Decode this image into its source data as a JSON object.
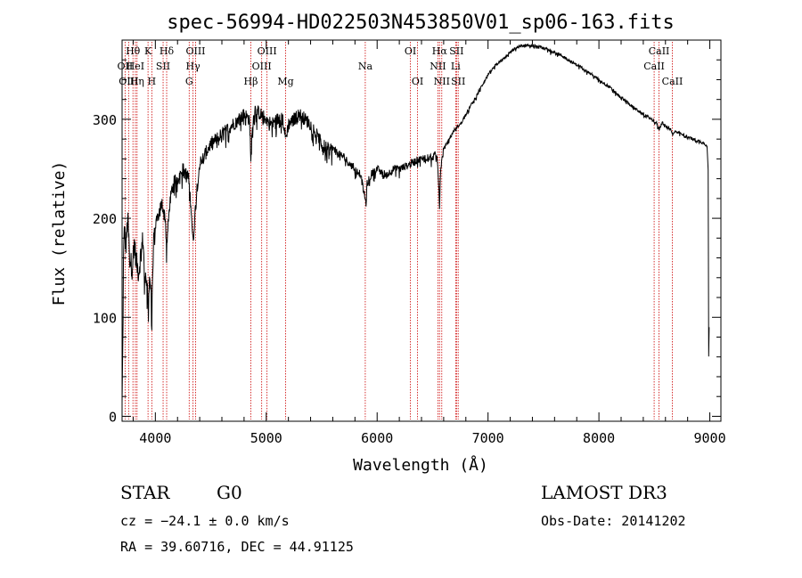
{
  "chart_data": {
    "type": "line",
    "title": "spec-56994-HD022503N453850V01_sp06-163.fits",
    "xlabel": "Wavelength (Å)",
    "ylabel": "Flux (relative)",
    "xlim": [
      3700,
      9100
    ],
    "ylim": [
      -5,
      380
    ],
    "x_ticks": [
      4000,
      5000,
      6000,
      7000,
      8000,
      9000
    ],
    "y_ticks": [
      0,
      100,
      200,
      300
    ],
    "series": [
      {
        "name": "flux",
        "anchors": [
          [
            3700,
            10
          ],
          [
            3705,
            55
          ],
          [
            3712,
            150
          ],
          [
            3720,
            190
          ],
          [
            3735,
            170
          ],
          [
            3750,
            200
          ],
          [
            3770,
            160
          ],
          [
            3790,
            150
          ],
          [
            3810,
            175
          ],
          [
            3830,
            155
          ],
          [
            3850,
            145
          ],
          [
            3870,
            165
          ],
          [
            3890,
            180
          ],
          [
            3905,
            130
          ],
          [
            3920,
            150
          ],
          [
            3935,
            115
          ],
          [
            3950,
            145
          ],
          [
            3968,
            110
          ],
          [
            3985,
            175
          ],
          [
            4000,
            190
          ],
          [
            4030,
            205
          ],
          [
            4060,
            215
          ],
          [
            4090,
            200
          ],
          [
            4101,
            170
          ],
          [
            4130,
            215
          ],
          [
            4160,
            235
          ],
          [
            4200,
            240
          ],
          [
            4250,
            250
          ],
          [
            4300,
            240
          ],
          [
            4320,
            215
          ],
          [
            4340,
            175
          ],
          [
            4370,
            225
          ],
          [
            4400,
            255
          ],
          [
            4450,
            265
          ],
          [
            4500,
            275
          ],
          [
            4550,
            280
          ],
          [
            4600,
            285
          ],
          [
            4650,
            290
          ],
          [
            4700,
            295
          ],
          [
            4750,
            300
          ],
          [
            4800,
            305
          ],
          [
            4850,
            300
          ],
          [
            4861,
            255
          ],
          [
            4875,
            295
          ],
          [
            4900,
            310
          ],
          [
            4950,
            305
          ],
          [
            5000,
            300
          ],
          [
            5050,
            295
          ],
          [
            5100,
            300
          ],
          [
            5150,
            300
          ],
          [
            5175,
            280
          ],
          [
            5200,
            295
          ],
          [
            5250,
            300
          ],
          [
            5300,
            305
          ],
          [
            5350,
            300
          ],
          [
            5400,
            295
          ],
          [
            5450,
            285
          ],
          [
            5500,
            275
          ],
          [
            5550,
            270
          ],
          [
            5600,
            270
          ],
          [
            5650,
            265
          ],
          [
            5700,
            262
          ],
          [
            5750,
            255
          ],
          [
            5800,
            250
          ],
          [
            5850,
            245
          ],
          [
            5890,
            220
          ],
          [
            5900,
            215
          ],
          [
            5910,
            235
          ],
          [
            5950,
            245
          ],
          [
            6000,
            250
          ],
          [
            6050,
            245
          ],
          [
            6100,
            245
          ],
          [
            6150,
            250
          ],
          [
            6200,
            250
          ],
          [
            6250,
            252
          ],
          [
            6300,
            255
          ],
          [
            6350,
            258
          ],
          [
            6400,
            260
          ],
          [
            6450,
            262
          ],
          [
            6500,
            262
          ],
          [
            6540,
            265
          ],
          [
            6555,
            235
          ],
          [
            6563,
            210
          ],
          [
            6572,
            250
          ],
          [
            6600,
            270
          ],
          [
            6650,
            280
          ],
          [
            6700,
            290
          ],
          [
            6750,
            295
          ],
          [
            6800,
            305
          ],
          [
            6850,
            315
          ],
          [
            6900,
            325
          ],
          [
            6950,
            335
          ],
          [
            7000,
            345
          ],
          [
            7050,
            352
          ],
          [
            7100,
            358
          ],
          [
            7150,
            362
          ],
          [
            7200,
            368
          ],
          [
            7250,
            372
          ],
          [
            7300,
            374
          ],
          [
            7350,
            375
          ],
          [
            7400,
            374
          ],
          [
            7450,
            373
          ],
          [
            7500,
            372
          ],
          [
            7550,
            370
          ],
          [
            7600,
            368
          ],
          [
            7650,
            365
          ],
          [
            7700,
            362
          ],
          [
            7750,
            358
          ],
          [
            7800,
            355
          ],
          [
            7850,
            352
          ],
          [
            7900,
            348
          ],
          [
            7950,
            344
          ],
          [
            8000,
            340
          ],
          [
            8050,
            336
          ],
          [
            8100,
            332
          ],
          [
            8150,
            327
          ],
          [
            8200,
            322
          ],
          [
            8250,
            318
          ],
          [
            8300,
            313
          ],
          [
            8350,
            309
          ],
          [
            8400,
            305
          ],
          [
            8450,
            302
          ],
          [
            8500,
            298
          ],
          [
            8520,
            296
          ],
          [
            8545,
            290
          ],
          [
            8570,
            297
          ],
          [
            8600,
            293
          ],
          [
            8650,
            290
          ],
          [
            8665,
            284
          ],
          [
            8690,
            288
          ],
          [
            8750,
            285
          ],
          [
            8800,
            282
          ],
          [
            8850,
            280
          ],
          [
            8900,
            278
          ],
          [
            8950,
            276
          ],
          [
            8975,
            273
          ],
          [
            8985,
            250
          ],
          [
            8990,
            60
          ],
          [
            8994,
            90
          ]
        ]
      }
    ],
    "spectral_lines": [
      {
        "label": "OII",
        "wavelength": 3727,
        "row": 2
      },
      {
        "label": "Hθ",
        "wavelength": 3798,
        "row": 1
      },
      {
        "label": "OIII",
        "wavelength": 3759,
        "row": 3
      },
      {
        "label": "HeI",
        "wavelength": 3820,
        "row": 2
      },
      {
        "label": "Hη",
        "wavelength": 3835,
        "row": 3
      },
      {
        "label": "K",
        "wavelength": 3934,
        "row": 1
      },
      {
        "label": "H",
        "wavelength": 3968,
        "row": 3
      },
      {
        "label": "SII",
        "wavelength": 4070,
        "row": 2
      },
      {
        "label": "Hδ",
        "wavelength": 4102,
        "row": 1
      },
      {
        "label": "G",
        "wavelength": 4305,
        "row": 3
      },
      {
        "label": "Hγ",
        "wavelength": 4340,
        "row": 2
      },
      {
        "label": "OIII",
        "wavelength": 4363,
        "row": 1
      },
      {
        "label": "Hβ",
        "wavelength": 4861,
        "row": 3
      },
      {
        "label": "OIII",
        "wavelength": 4959,
        "row": 2
      },
      {
        "label": "OIII",
        "wavelength": 5007,
        "row": 1
      },
      {
        "label": "Mg",
        "wavelength": 5175,
        "row": 3
      },
      {
        "label": "Na",
        "wavelength": 5893,
        "row": 2
      },
      {
        "label": "OI",
        "wavelength": 6300,
        "row": 1
      },
      {
        "label": "OI",
        "wavelength": 6364,
        "row": 3
      },
      {
        "label": "NII",
        "wavelength": 6548,
        "row": 2
      },
      {
        "label": "Hα",
        "wavelength": 6563,
        "row": 1
      },
      {
        "label": "NII",
        "wavelength": 6583,
        "row": 3
      },
      {
        "label": "Li",
        "wavelength": 6708,
        "row": 2
      },
      {
        "label": "SII",
        "wavelength": 6716,
        "row": 1
      },
      {
        "label": "SII",
        "wavelength": 6731,
        "row": 3
      },
      {
        "label": "CaII",
        "wavelength": 8498,
        "row": 2
      },
      {
        "label": "CaII",
        "wavelength": 8542,
        "row": 1
      },
      {
        "label": "CaII",
        "wavelength": 8662,
        "row": 3
      }
    ],
    "line_color": "#000000",
    "marker_color": "#cc0000"
  },
  "info": {
    "object_class": "STAR",
    "subclass": "G0",
    "cz": "cz = −24.1 ± 0.0 km/s",
    "coords": "RA =  39.60716, DEC =  44.91125",
    "survey": "LAMOST DR3",
    "obs_date": "Obs-Date: 20141202"
  }
}
